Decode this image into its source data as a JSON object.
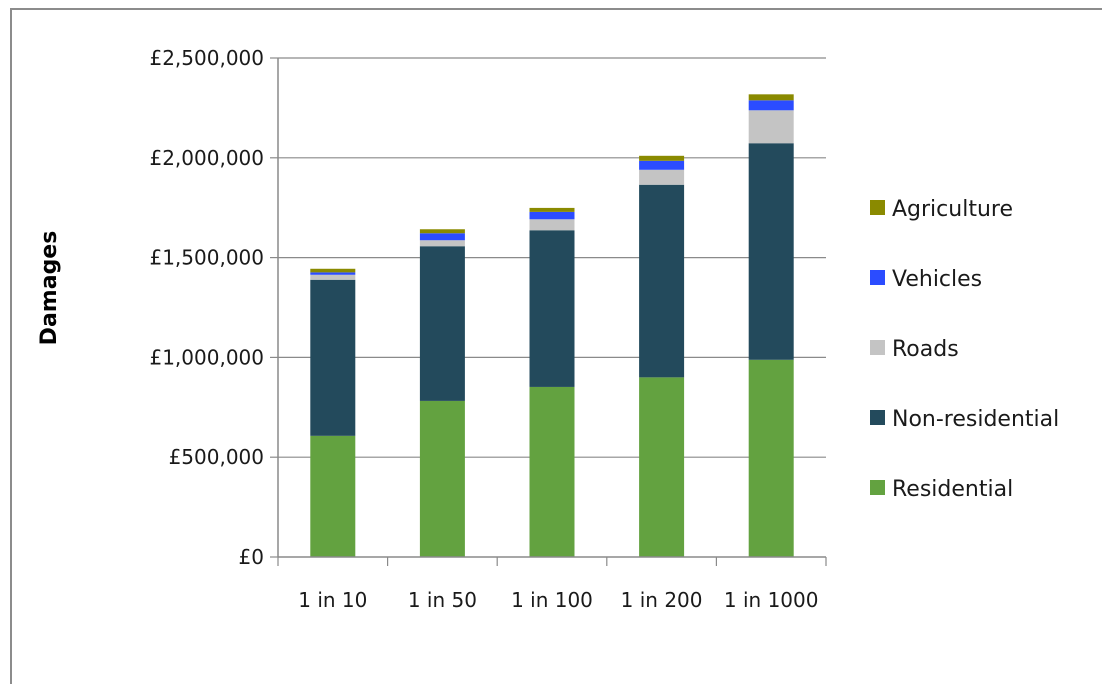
{
  "chart_data": {
    "type": "bar",
    "stacked": true,
    "categories": [
      "1 in 10",
      "1 in 50",
      "1 in 100",
      "1 in 200",
      "1 in 1000"
    ],
    "series": [
      {
        "name": "Residential",
        "color": "#63a240",
        "values": [
          607000,
          782000,
          852000,
          900000,
          988000
        ]
      },
      {
        "name": "Non-residential",
        "color": "#234a5c",
        "values": [
          782000,
          775000,
          785000,
          965000,
          1085000
        ]
      },
      {
        "name": "Roads",
        "color": "#c4c4c4",
        "values": [
          25000,
          30000,
          55000,
          75000,
          165000
        ]
      },
      {
        "name": "Vehicles",
        "color": "#2b4cff",
        "values": [
          12000,
          35000,
          37000,
          45000,
          50000
        ]
      },
      {
        "name": "Agriculture",
        "color": "#8a8a00",
        "values": [
          18000,
          20000,
          20000,
          25000,
          30000
        ]
      }
    ],
    "xlabel": "",
    "ylabel": "Damages",
    "ylim": [
      0,
      2500000
    ],
    "yticks": [
      "£0",
      "£500,000",
      "£1,000,000",
      "£1,500,000",
      "£2,000,000",
      "£2,500,000"
    ],
    "grid": true,
    "legend_position": "right",
    "legend_order": [
      "Agriculture",
      "Vehicles",
      "Roads",
      "Non-residential",
      "Residential"
    ]
  }
}
